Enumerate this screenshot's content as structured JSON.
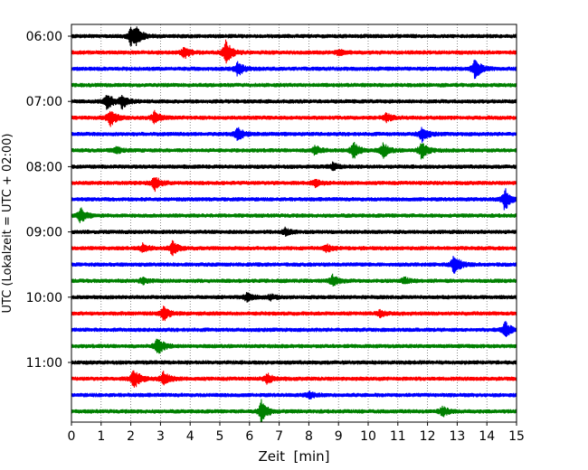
{
  "chart_data": {
    "type": "line",
    "title": "",
    "xlabel": "Zeit  [min]",
    "ylabel": "UTC (Lokalzeit = UTC + 02:00)",
    "xlim": [
      0,
      15
    ],
    "x_ticks": [
      0,
      1,
      2,
      3,
      4,
      5,
      6,
      7,
      8,
      9,
      10,
      11,
      12,
      13,
      14,
      15
    ],
    "x_grid": "vertical dotted lines at each minute",
    "y_ticks": [
      "06:00",
      "07:00",
      "08:00",
      "09:00",
      "10:00",
      "11:00"
    ],
    "trace_interval_min": 15,
    "trace_start": "06:00",
    "color_cycle": [
      "#000000",
      "#ff0000",
      "#0000ff",
      "#008000"
    ],
    "series": [
      {
        "start": "06:00",
        "color": "#000000",
        "events": [
          {
            "t": 2.0,
            "amp": 1.1
          },
          {
            "t": 2.2,
            "amp": 0.8
          }
        ]
      },
      {
        "start": "06:15",
        "color": "#ff0000",
        "events": [
          {
            "t": 3.8,
            "amp": 0.7
          },
          {
            "t": 5.2,
            "amp": 1.5
          },
          {
            "t": 9.0,
            "amp": 0.3
          }
        ]
      },
      {
        "start": "06:30",
        "color": "#0000ff",
        "events": [
          {
            "t": 5.6,
            "amp": 0.9
          },
          {
            "t": 13.6,
            "amp": 1.3
          }
        ]
      },
      {
        "start": "06:45",
        "color": "#008000",
        "events": []
      },
      {
        "start": "07:00",
        "color": "#000000",
        "events": [
          {
            "t": 1.2,
            "amp": 1.0
          },
          {
            "t": 1.7,
            "amp": 0.8
          }
        ]
      },
      {
        "start": "07:15",
        "color": "#ff0000",
        "events": [
          {
            "t": 1.3,
            "amp": 1.1
          },
          {
            "t": 2.8,
            "amp": 0.8
          },
          {
            "t": 10.6,
            "amp": 0.5
          }
        ]
      },
      {
        "start": "07:30",
        "color": "#0000ff",
        "events": [
          {
            "t": 5.6,
            "amp": 0.8
          },
          {
            "t": 11.8,
            "amp": 0.9
          }
        ]
      },
      {
        "start": "07:45",
        "color": "#008000",
        "events": [
          {
            "t": 1.5,
            "amp": 0.4
          },
          {
            "t": 8.2,
            "amp": 0.6
          },
          {
            "t": 9.5,
            "amp": 1.1
          },
          {
            "t": 10.5,
            "amp": 0.9
          },
          {
            "t": 11.8,
            "amp": 1.1
          }
        ]
      },
      {
        "start": "08:00",
        "color": "#000000",
        "events": [
          {
            "t": 8.8,
            "amp": 0.4
          }
        ]
      },
      {
        "start": "08:15",
        "color": "#ff0000",
        "events": [
          {
            "t": 2.8,
            "amp": 0.9
          },
          {
            "t": 8.2,
            "amp": 0.4
          }
        ]
      },
      {
        "start": "08:30",
        "color": "#0000ff",
        "events": [
          {
            "t": 14.6,
            "amp": 1.4
          }
        ]
      },
      {
        "start": "08:45",
        "color": "#008000",
        "events": [
          {
            "t": 0.3,
            "amp": 0.9
          }
        ]
      },
      {
        "start": "09:00",
        "color": "#000000",
        "events": [
          {
            "t": 7.2,
            "amp": 0.4
          }
        ]
      },
      {
        "start": "09:15",
        "color": "#ff0000",
        "events": [
          {
            "t": 2.4,
            "amp": 0.5
          },
          {
            "t": 3.4,
            "amp": 0.9
          },
          {
            "t": 8.6,
            "amp": 0.4
          }
        ]
      },
      {
        "start": "09:30",
        "color": "#0000ff",
        "events": [
          {
            "t": 12.9,
            "amp": 1.3
          }
        ]
      },
      {
        "start": "09:45",
        "color": "#008000",
        "events": [
          {
            "t": 2.4,
            "amp": 0.4
          },
          {
            "t": 8.8,
            "amp": 0.7
          },
          {
            "t": 11.2,
            "amp": 0.4
          }
        ]
      },
      {
        "start": "10:00",
        "color": "#000000",
        "events": [
          {
            "t": 5.9,
            "amp": 0.5
          },
          {
            "t": 6.7,
            "amp": 0.3
          }
        ]
      },
      {
        "start": "10:15",
        "color": "#ff0000",
        "events": [
          {
            "t": 3.1,
            "amp": 0.9
          },
          {
            "t": 10.4,
            "amp": 0.4
          }
        ]
      },
      {
        "start": "10:30",
        "color": "#0000ff",
        "events": [
          {
            "t": 14.6,
            "amp": 1.1
          }
        ]
      },
      {
        "start": "10:45",
        "color": "#008000",
        "events": [
          {
            "t": 2.9,
            "amp": 1.2
          }
        ]
      },
      {
        "start": "11:00",
        "color": "#000000",
        "events": []
      },
      {
        "start": "11:15",
        "color": "#ff0000",
        "events": [
          {
            "t": 2.1,
            "amp": 1.3
          },
          {
            "t": 3.1,
            "amp": 0.9
          },
          {
            "t": 6.6,
            "amp": 0.6
          }
        ]
      },
      {
        "start": "11:30",
        "color": "#0000ff",
        "events": [
          {
            "t": 8.0,
            "amp": 0.4
          }
        ]
      },
      {
        "start": "11:45",
        "color": "#008000",
        "events": [
          {
            "t": 6.4,
            "amp": 1.4
          },
          {
            "t": 12.5,
            "amp": 0.6
          }
        ]
      }
    ]
  }
}
